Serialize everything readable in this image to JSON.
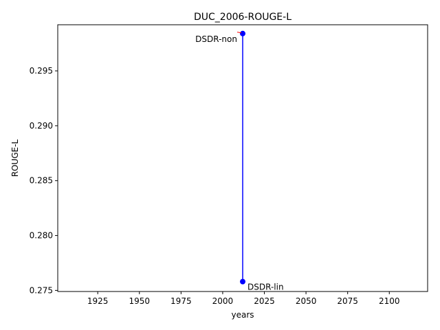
{
  "chart_data": {
    "type": "line",
    "title": "DUC_2006-ROUGE-L",
    "xlabel": "years",
    "ylabel": "ROUGE-L",
    "xlim": [
      1901,
      2123
    ],
    "ylim": [
      0.2749,
      0.2992
    ],
    "xticks": [
      1925,
      1950,
      1975,
      2000,
      2025,
      2050,
      2075,
      2100
    ],
    "yticks": [
      0.275,
      0.28,
      0.285,
      0.29,
      0.295
    ],
    "ytick_labels": [
      "0.275",
      "0.280",
      "0.285",
      "0.290",
      "0.295"
    ],
    "grid": false,
    "line_color": "#0000ff",
    "marker_color": "#0000ff",
    "arrow_color": "#ff0000",
    "series": [
      {
        "points": [
          {
            "x": 2012,
            "y": 0.2758,
            "label": "DSDR-lin"
          },
          {
            "x": 2012,
            "y": 0.2984,
            "label": "DSDR-non"
          }
        ]
      }
    ]
  }
}
